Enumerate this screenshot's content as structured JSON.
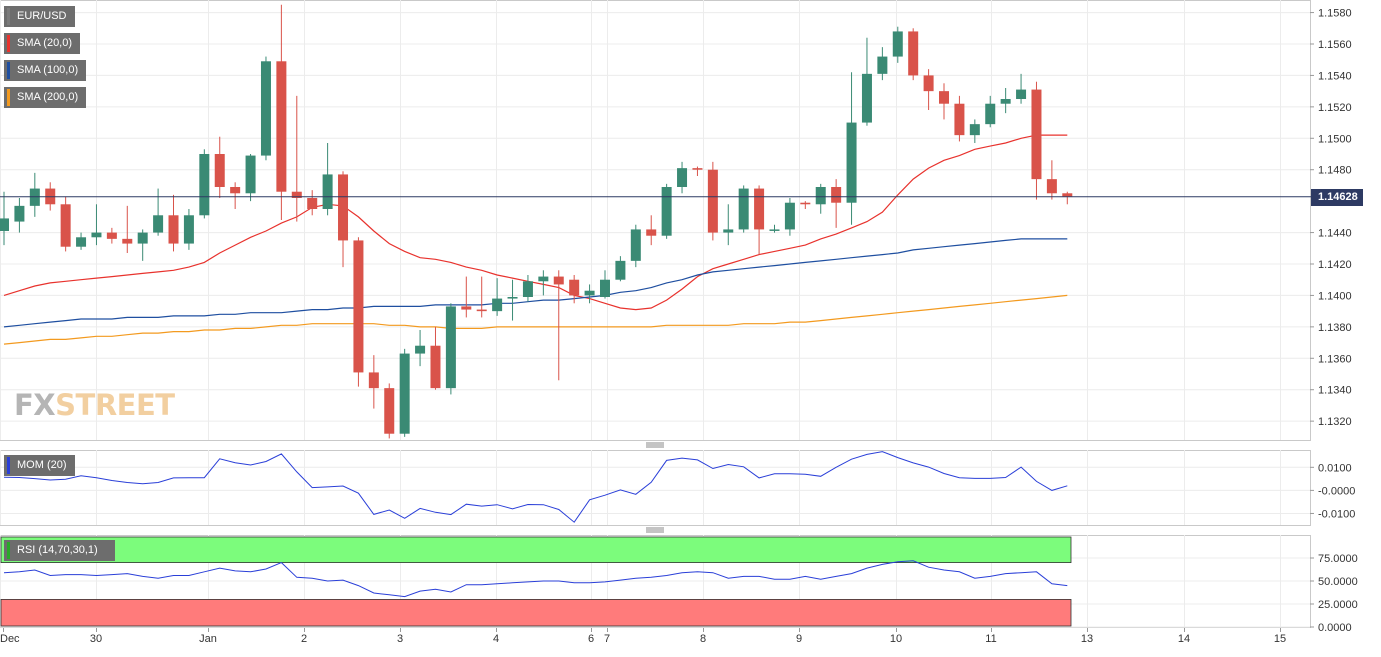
{
  "price_panel": {
    "symbol_label": "EUR/USD",
    "indicators": [
      {
        "label": "SMA (20,0)",
        "color": "#e8322d"
      },
      {
        "label": "SMA (100,0)",
        "color": "#1f4fa0"
      },
      {
        "label": "SMA (200,0)",
        "color": "#f39a1f"
      }
    ],
    "current_price": "1.14628",
    "logo": {
      "part1": "FX",
      "part2": "STREET"
    }
  },
  "mom_panel": {
    "label": "MOM (20)",
    "line_color": "#2a3fd8"
  },
  "rsi_panel": {
    "label": "RSI (14,70,30,1)",
    "line_color": "#2a3fd8",
    "overbought_color": "#7cfc7c",
    "oversold_color": "#ff7b7b"
  },
  "chart_data": [
    {
      "type": "candlestick",
      "title": "EUR/USD",
      "x_ticks": [
        "Dec",
        "30",
        "Jan",
        "2",
        "3",
        "4",
        "6",
        "7",
        "8",
        "9",
        "10",
        "11",
        "13",
        "14",
        "15"
      ],
      "y_ticks": [
        "1.1580",
        "1.1560",
        "1.1540",
        "1.1520",
        "1.1500",
        "1.1480",
        "1.1440",
        "1.1420",
        "1.1400",
        "1.1380",
        "1.1360",
        "1.1340",
        "1.1320"
      ],
      "ylim": [
        1.1308,
        1.1588
      ],
      "last_price": 1.14628,
      "candles": [
        [
          1.1441,
          1.1449,
          1.1432,
          1.1466
        ],
        [
          1.1447,
          1.1457,
          1.144,
          1.1462
        ],
        [
          1.1457,
          1.1468,
          1.145,
          1.1478
        ],
        [
          1.1468,
          1.1458,
          1.1454,
          1.1472
        ],
        [
          1.1458,
          1.1431,
          1.1428,
          1.1463
        ],
        [
          1.1431,
          1.1437,
          1.1429,
          1.144
        ],
        [
          1.1437,
          1.144,
          1.1432,
          1.1458
        ],
        [
          1.144,
          1.1436,
          1.1433,
          1.1443
        ],
        [
          1.1436,
          1.1433,
          1.1427,
          1.1457
        ],
        [
          1.1433,
          1.144,
          1.1422,
          1.1442
        ],
        [
          1.144,
          1.1451,
          1.1438,
          1.1468
        ],
        [
          1.1451,
          1.1433,
          1.1428,
          1.1464
        ],
        [
          1.1433,
          1.1451,
          1.1429,
          1.1455
        ],
        [
          1.1451,
          1.149,
          1.1449,
          1.1493
        ],
        [
          1.149,
          1.1469,
          1.1462,
          1.1501
        ],
        [
          1.1469,
          1.1465,
          1.1455,
          1.1472
        ],
        [
          1.1465,
          1.1489,
          1.146,
          1.149
        ],
        [
          1.1489,
          1.1549,
          1.1486,
          1.1552
        ],
        [
          1.1549,
          1.1466,
          1.1448,
          1.1585
        ],
        [
          1.1466,
          1.1462,
          1.1447,
          1.1527
        ],
        [
          1.1462,
          1.1455,
          1.1451,
          1.1467
        ],
        [
          1.1455,
          1.1477,
          1.1451,
          1.1497
        ],
        [
          1.1477,
          1.1435,
          1.1418,
          1.1479
        ],
        [
          1.1435,
          1.1351,
          1.1342,
          1.1437
        ],
        [
          1.1351,
          1.1341,
          1.1328,
          1.1362
        ],
        [
          1.1341,
          1.1312,
          1.1309,
          1.1344
        ],
        [
          1.1312,
          1.1363,
          1.131,
          1.1366
        ],
        [
          1.1363,
          1.1368,
          1.1355,
          1.1378
        ],
        [
          1.1368,
          1.1341,
          1.134,
          1.138
        ],
        [
          1.1341,
          1.1393,
          1.1337,
          1.1395
        ],
        [
          1.1393,
          1.1391,
          1.1386,
          1.1412
        ],
        [
          1.1391,
          1.139,
          1.1386,
          1.1412
        ],
        [
          1.139,
          1.1398,
          1.1387,
          1.1411
        ],
        [
          1.1398,
          1.1399,
          1.1384,
          1.141
        ],
        [
          1.1399,
          1.1409,
          1.1396,
          1.1413
        ],
        [
          1.1409,
          1.1412,
          1.14,
          1.1416
        ],
        [
          1.1412,
          1.1407,
          1.1346,
          1.1416
        ],
        [
          1.141,
          1.14,
          1.1395,
          1.1413
        ],
        [
          1.14,
          1.1403,
          1.1395,
          1.1407
        ],
        [
          1.1399,
          1.141,
          1.1398,
          1.1416
        ],
        [
          1.141,
          1.1422,
          1.1409,
          1.1425
        ],
        [
          1.1422,
          1.1442,
          1.1418,
          1.1445
        ],
        [
          1.1442,
          1.1438,
          1.1432,
          1.1451
        ],
        [
          1.1438,
          1.1469,
          1.1436,
          1.1471
        ],
        [
          1.1469,
          1.1481,
          1.1465,
          1.1485
        ],
        [
          1.1481,
          1.148,
          1.1476,
          1.1482
        ],
        [
          1.148,
          1.144,
          1.1435,
          1.1485
        ],
        [
          1.144,
          1.1442,
          1.1432,
          1.1458
        ],
        [
          1.1442,
          1.1468,
          1.144,
          1.147
        ],
        [
          1.1468,
          1.1442,
          1.1426,
          1.147
        ],
        [
          1.1442,
          1.1442,
          1.144,
          1.1445
        ],
        [
          1.1442,
          1.1459,
          1.1438,
          1.1462
        ],
        [
          1.1459,
          1.1458,
          1.1455,
          1.146
        ],
        [
          1.1458,
          1.1469,
          1.1452,
          1.1471
        ],
        [
          1.1469,
          1.1459,
          1.1443,
          1.1474
        ],
        [
          1.1459,
          1.151,
          1.1445,
          1.1542
        ],
        [
          1.151,
          1.1541,
          1.1508,
          1.1564
        ],
        [
          1.1541,
          1.1552,
          1.1537,
          1.1558
        ],
        [
          1.1552,
          1.1568,
          1.1548,
          1.1571
        ],
        [
          1.1568,
          1.154,
          1.1537,
          1.157
        ],
        [
          1.154,
          1.153,
          1.1518,
          1.1544
        ],
        [
          1.153,
          1.1522,
          1.1512,
          1.1535
        ],
        [
          1.1522,
          1.1502,
          1.1498,
          1.1527
        ],
        [
          1.1502,
          1.1509,
          1.1497,
          1.1512
        ],
        [
          1.1509,
          1.1522,
          1.1507,
          1.1527
        ],
        [
          1.1522,
          1.1525,
          1.1516,
          1.1532
        ],
        [
          1.1525,
          1.1531,
          1.1522,
          1.1541
        ],
        [
          1.1531,
          1.1474,
          1.1461,
          1.1536
        ],
        [
          1.1474,
          1.1465,
          1.1461,
          1.1486
        ],
        [
          1.1465,
          1.1463,
          1.1458,
          1.1466
        ]
      ],
      "series": [
        {
          "name": "SMA (20,0)",
          "values": [
            1.14,
            1.1403,
            1.1406,
            1.1408,
            1.1409,
            1.141,
            1.1411,
            1.1412,
            1.1413,
            1.1414,
            1.1415,
            1.1416,
            1.1418,
            1.1421,
            1.1427,
            1.1432,
            1.1437,
            1.1441,
            1.1446,
            1.145,
            1.1456,
            1.1458,
            1.1457,
            1.145,
            1.1441,
            1.1433,
            1.1428,
            1.1424,
            1.1423,
            1.1421,
            1.1418,
            1.1416,
            1.1413,
            1.1411,
            1.1409,
            1.1407,
            1.1405,
            1.14,
            1.1398,
            1.1395,
            1.1392,
            1.1391,
            1.1392,
            1.1397,
            1.1404,
            1.1412,
            1.1417,
            1.142,
            1.1423,
            1.1426,
            1.1428,
            1.143,
            1.1432,
            1.1436,
            1.1439,
            1.1443,
            1.1447,
            1.1453,
            1.1464,
            1.1474,
            1.1481,
            1.1486,
            1.1489,
            1.1493,
            1.1495,
            1.1497,
            1.15,
            1.1502,
            1.1502,
            1.1502
          ]
        },
        {
          "name": "SMA (100,0)",
          "values": [
            1.138,
            1.1381,
            1.1382,
            1.1383,
            1.1384,
            1.1385,
            1.1385,
            1.1385,
            1.1386,
            1.1386,
            1.1386,
            1.1387,
            1.1387,
            1.1387,
            1.1388,
            1.1388,
            1.1389,
            1.1389,
            1.1389,
            1.139,
            1.1391,
            1.1391,
            1.1392,
            1.1392,
            1.1393,
            1.1393,
            1.1393,
            1.1393,
            1.1394,
            1.1394,
            1.1394,
            1.1394,
            1.1395,
            1.1395,
            1.1396,
            1.1397,
            1.1397,
            1.1398,
            1.1399,
            1.14,
            1.1402,
            1.1403,
            1.1405,
            1.1408,
            1.141,
            1.1413,
            1.1415,
            1.1416,
            1.1417,
            1.1418,
            1.1419,
            1.142,
            1.1421,
            1.1422,
            1.1423,
            1.1424,
            1.1425,
            1.1426,
            1.1427,
            1.1429,
            1.143,
            1.1431,
            1.1432,
            1.1433,
            1.1434,
            1.1435,
            1.1436,
            1.1436,
            1.1436,
            1.1436
          ]
        },
        {
          "name": "SMA (200,0)",
          "values": [
            1.1369,
            1.137,
            1.1371,
            1.1372,
            1.1372,
            1.1373,
            1.1374,
            1.1374,
            1.1375,
            1.1376,
            1.1376,
            1.1377,
            1.1377,
            1.1378,
            1.1378,
            1.1379,
            1.1379,
            1.138,
            1.1381,
            1.1381,
            1.1382,
            1.1382,
            1.1382,
            1.1382,
            1.1382,
            1.1381,
            1.1381,
            1.138,
            1.138,
            1.1379,
            1.1379,
            1.1379,
            1.138,
            1.138,
            1.138,
            1.138,
            1.138,
            1.138,
            1.138,
            1.138,
            1.138,
            1.138,
            1.138,
            1.1381,
            1.1381,
            1.1381,
            1.1381,
            1.1381,
            1.1382,
            1.1382,
            1.1382,
            1.1383,
            1.1383,
            1.1384,
            1.1385,
            1.1386,
            1.1387,
            1.1388,
            1.1389,
            1.139,
            1.1391,
            1.1392,
            1.1393,
            1.1394,
            1.1395,
            1.1396,
            1.1397,
            1.1398,
            1.1399,
            1.14
          ]
        }
      ]
    },
    {
      "type": "line",
      "title": "MOM (20)",
      "y_ticks": [
        "0.0100",
        "-0.0000",
        "-0.0100"
      ],
      "ylim": [
        -0.015,
        0.0175
      ],
      "series": [
        {
          "name": "MOM (20)",
          "values": [
            0.0057,
            0.0056,
            0.0051,
            0.0045,
            0.0048,
            0.0063,
            0.0055,
            0.0043,
            0.0034,
            0.0029,
            0.0034,
            0.0054,
            0.0055,
            0.0055,
            0.0137,
            0.012,
            0.011,
            0.0125,
            0.0158,
            0.008,
            0.0012,
            0.0015,
            0.0019,
            -0.0012,
            -0.0104,
            -0.0085,
            -0.0121,
            -0.0078,
            -0.0095,
            -0.0105,
            -0.006,
            -0.0068,
            -0.0062,
            -0.008,
            -0.0061,
            -0.0062,
            -0.0083,
            -0.0138,
            -0.0041,
            -0.0021,
            0.0002,
            -0.0017,
            0.0035,
            0.013,
            0.014,
            0.0132,
            0.0095,
            0.0112,
            0.0102,
            0.0054,
            0.0072,
            0.0072,
            0.007,
            0.0061,
            0.01,
            0.0135,
            0.0156,
            0.0168,
            0.0142,
            0.0119,
            0.0101,
            0.0073,
            0.0055,
            0.0052,
            0.0052,
            0.0056,
            0.0101,
            0.0039,
            0.0,
            0.002
          ]
        }
      ]
    },
    {
      "type": "line",
      "title": "RSI (14,70,30,1)",
      "y_ticks": [
        "75.0000",
        "50.0000",
        "25.0000",
        "0.0000"
      ],
      "ylim": [
        0,
        100
      ],
      "overbought": 70,
      "oversold": 30,
      "series": [
        {
          "name": "RSI (14,70,30,1)",
          "values": [
            59,
            60,
            62,
            56,
            57,
            57,
            56,
            57,
            58,
            55,
            53,
            56,
            56,
            60,
            64,
            61,
            60,
            63,
            70,
            54,
            53,
            50,
            51,
            45,
            37,
            35,
            33,
            39,
            41,
            38,
            46,
            46,
            47,
            48,
            49,
            50,
            50,
            48,
            48,
            49,
            51,
            53,
            54,
            56,
            59,
            60,
            59,
            53,
            55,
            55,
            52,
            52,
            55,
            52,
            55,
            58,
            64,
            68,
            71,
            72,
            65,
            62,
            60,
            53,
            55,
            58,
            59,
            60,
            47,
            45
          ]
        }
      ]
    }
  ]
}
